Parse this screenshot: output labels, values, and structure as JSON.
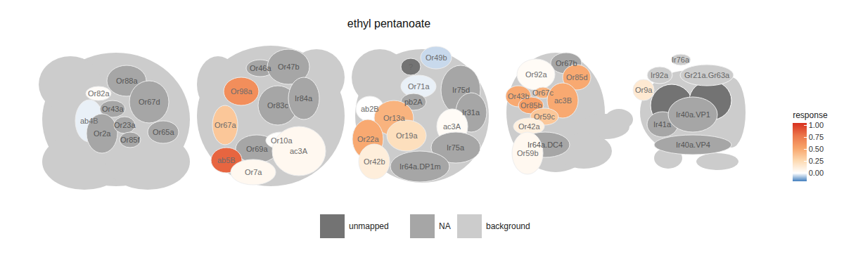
{
  "chart_data": {
    "type": "glomerular_map",
    "title": "ethyl pentanoate",
    "panels": [
      {
        "glomeruli": [
          {
            "label": "Or88a",
            "response": null
          },
          {
            "label": "Or82a",
            "response": 0.02
          },
          {
            "label": "ab4B",
            "response": -0.02
          },
          {
            "label": "Or43a",
            "response": null
          },
          {
            "label": "Or67d",
            "response": null
          },
          {
            "label": "Or2a",
            "response": null
          },
          {
            "label": "Or23a",
            "response": null
          },
          {
            "label": "Or85f",
            "response": null
          },
          {
            "label": "Or65a",
            "response": null
          }
        ]
      },
      {
        "glomeruli": [
          {
            "label": "Or46a",
            "response": null
          },
          {
            "label": "Or47b",
            "response": null
          },
          {
            "label": "Or98a",
            "response": 0.65
          },
          {
            "label": "Or83c",
            "response": null
          },
          {
            "label": "Ir84a",
            "response": null
          },
          {
            "label": "Or67a",
            "response": 0.35
          },
          {
            "label": "Or69a",
            "response": null
          },
          {
            "label": "Or10a",
            "response": 0.01
          },
          {
            "label": "ab5B",
            "response": 0.85
          },
          {
            "label": "Or7a",
            "response": 0.05
          },
          {
            "label": "ac3A",
            "response": 0.05
          }
        ]
      },
      {
        "glomeruli": [
          {
            "label": "?",
            "state": "unmapped"
          },
          {
            "label": "Or49b",
            "response": -0.05
          },
          {
            "label": "Or71a",
            "response": -0.02
          },
          {
            "label": "Ir75d",
            "response": null
          },
          {
            "label": "pb2A",
            "response": null
          },
          {
            "label": "ab2B",
            "response": 0.0
          },
          {
            "label": "Or13a",
            "response": 0.45
          },
          {
            "label": "Ir31a",
            "response": null
          },
          {
            "label": "Or19a",
            "response": 0.22
          },
          {
            "label": "ac3A",
            "response": 0.03
          },
          {
            "label": "Or22a",
            "response": 0.5
          },
          {
            "label": "Ir75a",
            "response": null
          },
          {
            "label": "Or42b",
            "response": 0.12
          },
          {
            "label": "Ir64a.DP1m",
            "response": null
          }
        ]
      },
      {
        "glomeruli": [
          {
            "label": "Or67b",
            "response": null
          },
          {
            "label": "Or92a",
            "response": 0.03
          },
          {
            "label": "Or85d",
            "response": 0.5
          },
          {
            "label": "Or67c",
            "response": 0.45
          },
          {
            "label": "Or43b",
            "response": 0.5
          },
          {
            "label": "Or85b",
            "response": 0.55
          },
          {
            "label": "ac3B",
            "response": 0.5
          },
          {
            "label": "Or59c",
            "response": 0.35
          },
          {
            "label": "Or42a",
            "response": 0.1
          },
          {
            "label": "Ir64a.DC4",
            "response": null
          },
          {
            "label": "Or59b",
            "response": 0.05
          }
        ]
      },
      {
        "glomeruli": [
          {
            "label": "Ir76a",
            "state": "background"
          },
          {
            "label": "Ir92a",
            "state": "background"
          },
          {
            "label": "Gr21a.Gr63a",
            "state": "background"
          },
          {
            "label": "Or9a",
            "response": 0.15
          },
          {
            "label": "Ir41a",
            "response": null
          },
          {
            "label": "Ir40a.VP1",
            "response": null
          },
          {
            "label": "Ir40a.VP4",
            "response": null
          }
        ]
      }
    ],
    "colorbar": {
      "title": "response",
      "range": [
        -0.17,
        1.05
      ],
      "ticks": [
        {
          "value": 0,
          "label": "0.00"
        },
        {
          "value": 0.25,
          "label": "0.25"
        },
        {
          "value": 0.5,
          "label": "0.50"
        },
        {
          "value": 0.75,
          "label": "0.75"
        },
        {
          "value": 1,
          "label": "1.00"
        }
      ]
    },
    "key": [
      {
        "name": "unmapped",
        "color": "#737373"
      },
      {
        "name": "NA",
        "color": "#a6a6a6"
      },
      {
        "name": "background",
        "color": "#cccccc"
      }
    ]
  }
}
